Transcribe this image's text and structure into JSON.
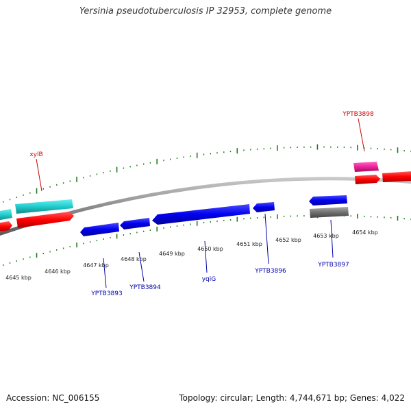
{
  "title": "Yersinia pseudotuberculosis IP 32953, complete genome",
  "footer": {
    "accession": "Accession: NC_006155",
    "summary": "Topology: circular; Length: 4,744,671 bp; Genes: 4,022"
  },
  "colors": {
    "backbone": "#8c8c8c",
    "tick": "#1f7a1f",
    "forward_gene": "#ff0000",
    "reverse_gene": "#0000ee",
    "cyan_gene": "#22cccc",
    "pink_gene": "#ee2299",
    "gray_gene": "#707070",
    "label_red": "#cc0000",
    "label_blue": "#0000aa"
  },
  "scale_labels": [
    "4645 kbp",
    "4646 kbp",
    "4647 kbp",
    "4648 kbp",
    "4649 kbp",
    "4650 kbp",
    "4651 kbp",
    "4652 kbp",
    "4653 kbp",
    "4654 kbp"
  ],
  "gene_labels": [
    {
      "text": "xylB",
      "strand": "forward"
    },
    {
      "text": "YPTB3898",
      "strand": "forward"
    },
    {
      "text": "YPTB3893",
      "strand": "reverse"
    },
    {
      "text": "YPTB3894",
      "strand": "reverse"
    },
    {
      "text": "yqiG",
      "strand": "reverse"
    },
    {
      "text": "YPTB3896",
      "strand": "reverse"
    },
    {
      "text": "YPTB3897",
      "strand": "reverse"
    }
  ]
}
